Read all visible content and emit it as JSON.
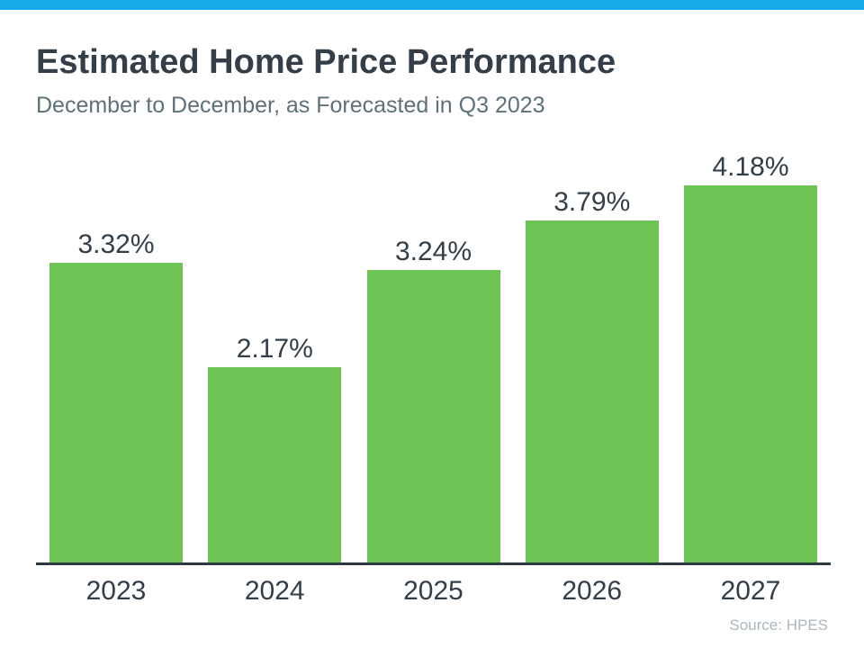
{
  "header": {
    "title": "Estimated Home Price Performance",
    "subtitle": "December to December, as Forecasted in Q3 2023"
  },
  "chart_data": {
    "type": "bar",
    "categories": [
      "2023",
      "2024",
      "2025",
      "2026",
      "2027"
    ],
    "values": [
      3.32,
      2.17,
      3.24,
      3.79,
      4.18
    ],
    "value_labels": [
      "3.32%",
      "2.17%",
      "3.24%",
      "3.79%",
      "4.18%"
    ],
    "title": "Estimated Home Price Performance",
    "subtitle": "December to December, as Forecasted in Q3 2023",
    "xlabel": "",
    "ylabel": "",
    "ylim": [
      0,
      4.18
    ],
    "grid": false,
    "legend": false,
    "data_label_position": "above"
  },
  "footer": {
    "source": "Source: HPES"
  },
  "colors": {
    "accent_bar": "#18abeb",
    "bar_green": "#6ec355",
    "title_text": "#333e48",
    "subtitle_text": "#5e7179",
    "axis_line": "#2e3a42",
    "source_text": "#aab7bd"
  }
}
